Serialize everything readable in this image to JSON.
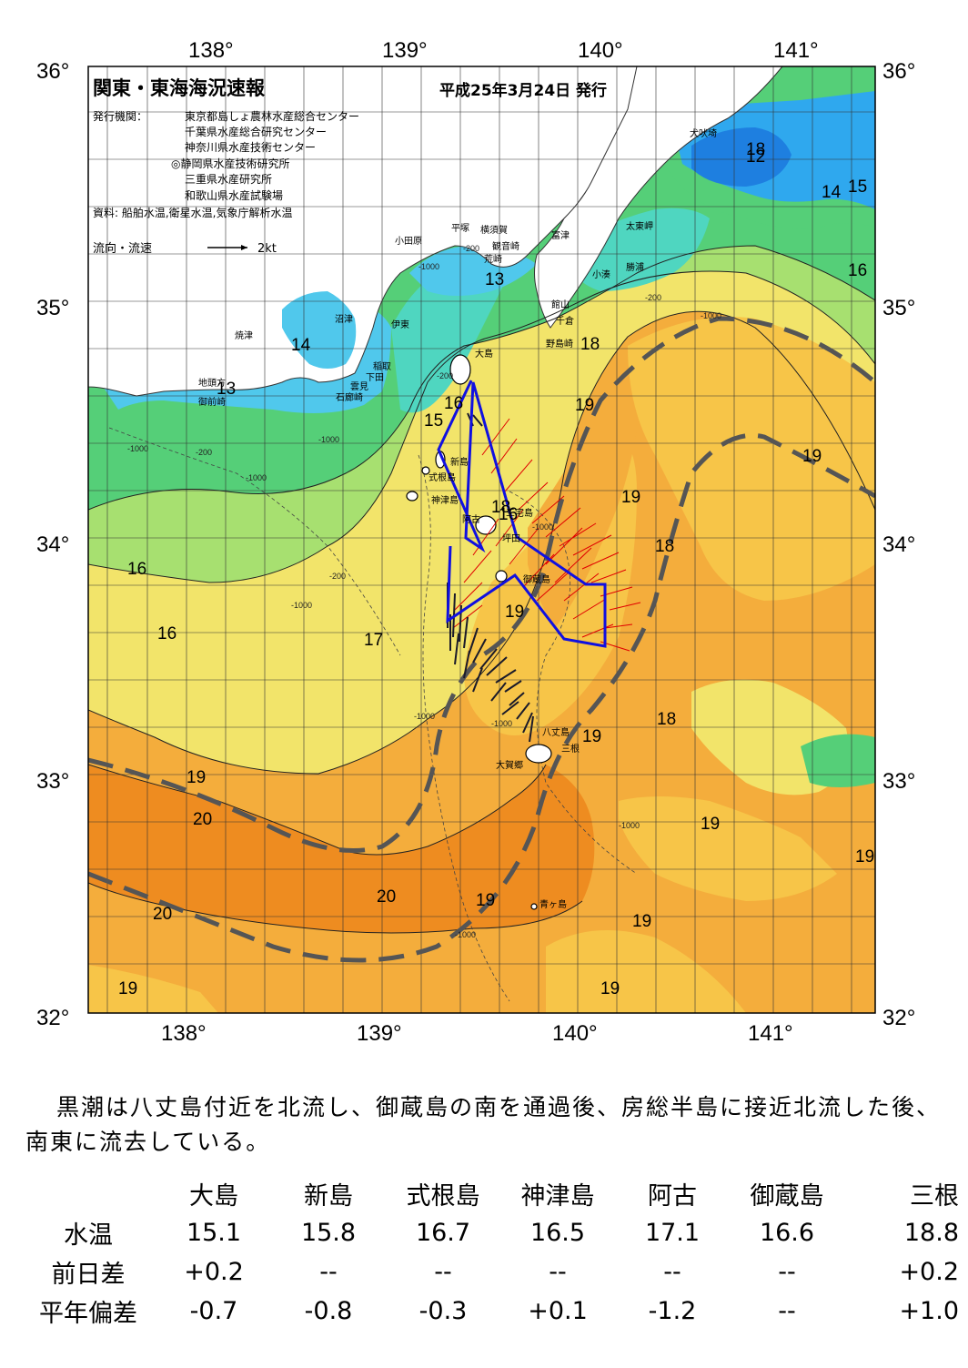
{
  "map": {
    "title": "関東・東海海況速報",
    "date": "平成25年3月24日 発行",
    "publisher_label": "発行機関：",
    "publishers": [
      "東京都島しょ農林水産総合センター",
      "千葉県水産総合研究センター",
      "神奈川県水産技術センター",
      "◎静岡県水産技術研究所",
      "三重県水産研究所",
      "和歌山県水産試験場"
    ],
    "source": "資料: 船舶水温,衛星水温,気象庁解析水温",
    "legend_label": "流向・流速",
    "legend_speed": "2kt",
    "lon_labels": [
      "138°",
      "139°",
      "140°",
      "141°"
    ],
    "lat_labels": [
      "36°",
      "35°",
      "34°",
      "33°",
      "32°"
    ],
    "place_names": {
      "inubosaki": "犬吠埼",
      "taitomisaki": "太東岬",
      "katsuura": "勝浦",
      "kominato": "小湊",
      "futtsu": "富津",
      "yokosuka": "横須賀",
      "kannonzaki": "観音崎",
      "arasaki": "荒崎",
      "hiratsuka": "平塚",
      "odawara": "小田原",
      "tateyama": "館山",
      "chikura": "千倉",
      "nojimazaki": "野島崎",
      "oshima": "大島",
      "numazu": "沼津",
      "ito": "伊東",
      "yaizu": "焼津",
      "inatori": "稲取",
      "shimoda": "下田",
      "kumomi": "雲見",
      "irozaki": "石廊崎",
      "chikyumisaki": "地頭方",
      "omaezaki": "御前崎",
      "niijima": "新島",
      "shikinejima": "式根島",
      "kozushima": "神津島",
      "miyakejima": "三宅島",
      "tsubota": "坪田",
      "ako": "阿古",
      "mikurajima": "御蔵島",
      "hachijojima": "八丈島",
      "mitsune": "三根",
      "okago": "大賀郷",
      "aogashima": "青ヶ島"
    },
    "isotherm_labels": [
      "12",
      "13",
      "13",
      "14",
      "14",
      "15",
      "15",
      "16",
      "16",
      "16",
      "16",
      "16",
      "17",
      "18",
      "18",
      "18",
      "18",
      "18",
      "19",
      "19",
      "19",
      "19",
      "19",
      "19",
      "19",
      "19",
      "19",
      "19",
      "19",
      "19",
      "20",
      "20",
      "20"
    ],
    "depth_labels": [
      "-200",
      "-1000"
    ],
    "colors": {
      "t12": "#1e7fe0",
      "t13": "#2fa8ee",
      "t14": "#50c8ec",
      "t15": "#4fd6c0",
      "t16": "#55cf78",
      "t17": "#a7e070",
      "t18": "#f2e46a",
      "t18b": "#f7c548",
      "t19": "#f4ad3c",
      "t20": "#ee8c20",
      "kuroshio_axis": "#555555",
      "route": "#1010e0",
      "current_red": "#e00000",
      "current_black": "#1a1a2a"
    }
  },
  "summary": "黒潮は八丈島付近を北流し、御蔵島の南を通過後、房総半島に接近北流した後、南東に流去している。",
  "table": {
    "columns": [
      "大島",
      "新島",
      "式根島",
      "神津島",
      "阿古",
      "御蔵島",
      "三根"
    ],
    "rows": [
      {
        "label": "水温",
        "values": [
          "15.1",
          "15.8",
          "16.7",
          "16.5",
          "17.1",
          "16.6",
          "18.8"
        ]
      },
      {
        "label": "前日差",
        "values": [
          "+0.2",
          "--",
          "--",
          "--",
          "--",
          "--",
          "+0.2"
        ]
      },
      {
        "label": "平年偏差",
        "values": [
          "-0.7",
          "-0.8",
          "-0.3",
          "+0.1",
          "-1.2",
          "--",
          "+1.0"
        ]
      }
    ]
  }
}
